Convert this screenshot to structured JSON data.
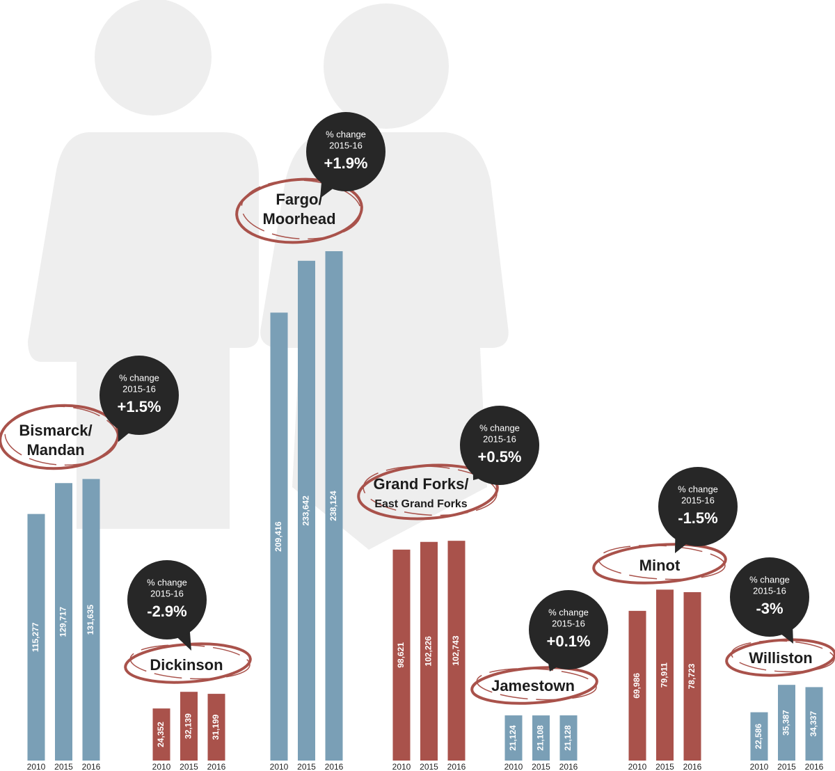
{
  "chart_data": [
    {
      "type": "bar",
      "title": [
        "Bismarck/",
        "Mandan"
      ],
      "annotation": [
        "% change",
        "2015-16"
      ],
      "change": "+1.5%",
      "color": "#7a9fb6",
      "categories": [
        "2010",
        "2015",
        "2016"
      ],
      "values": [
        115277,
        129717,
        131635
      ],
      "value_labels": [
        "115,277",
        "129,717",
        "131,635"
      ]
    },
    {
      "type": "bar",
      "title": [
        "Dickinson"
      ],
      "annotation": [
        "% change",
        "2015-16"
      ],
      "change": "-2.9%",
      "color": "#a9524b",
      "categories": [
        "2010",
        "2015",
        "2016"
      ],
      "values": [
        24352,
        32139,
        31199
      ],
      "value_labels": [
        "24,352",
        "32,139",
        "31,199"
      ]
    },
    {
      "type": "bar",
      "title": [
        "Fargo/",
        "Moorhead"
      ],
      "annotation": [
        "% change",
        "2015-16"
      ],
      "change": "+1.9%",
      "color": "#7a9fb6",
      "categories": [
        "2010",
        "2015",
        "2016"
      ],
      "values": [
        209416,
        233642,
        238124
      ],
      "value_labels": [
        "209,416",
        "233,642",
        "238,124"
      ]
    },
    {
      "type": "bar",
      "title": [
        "Grand Forks/",
        "East Grand Forks"
      ],
      "annotation": [
        "% change",
        "2015-16"
      ],
      "change": "+0.5%",
      "color": "#a9524b",
      "categories": [
        "2010",
        "2015",
        "2016"
      ],
      "values": [
        98621,
        102226,
        102743
      ],
      "value_labels": [
        "98,621",
        "102,226",
        "102,743"
      ]
    },
    {
      "type": "bar",
      "title": [
        "Jamestown"
      ],
      "annotation": [
        "% change",
        "2015-16"
      ],
      "change": "+0.1%",
      "color": "#7a9fb6",
      "categories": [
        "2010",
        "2015",
        "2016"
      ],
      "values": [
        21124,
        21108,
        21128
      ],
      "value_labels": [
        "21,124",
        "21,108",
        "21,128"
      ]
    },
    {
      "type": "bar",
      "title": [
        "Minot"
      ],
      "annotation": [
        "% change",
        "2015-16"
      ],
      "change": "-1.5%",
      "color": "#a9524b",
      "categories": [
        "2010",
        "2015",
        "2016"
      ],
      "values": [
        69986,
        79911,
        78723
      ],
      "value_labels": [
        "69,986",
        "79,911",
        "78,723"
      ]
    },
    {
      "type": "bar",
      "title": [
        "Williston"
      ],
      "annotation": [
        "% change",
        "2015-16"
      ],
      "change": "-3%",
      "color": "#7a9fb6",
      "categories": [
        "2010",
        "2015",
        "2016"
      ],
      "values": [
        22586,
        35387,
        34337
      ],
      "value_labels": [
        "22,586",
        "35,387",
        "34,337"
      ]
    }
  ]
}
